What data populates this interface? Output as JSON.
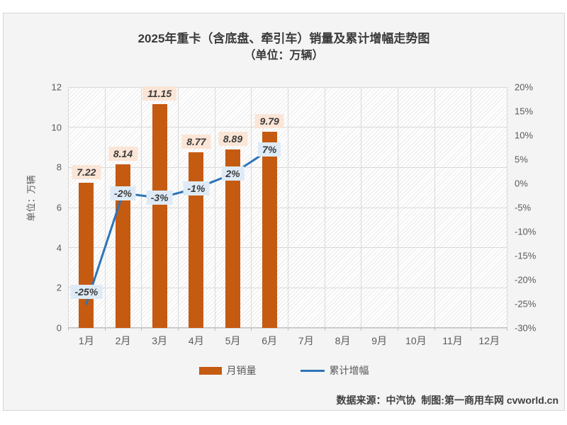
{
  "chart": {
    "title_line1": "2025年重卡（含底盘、牵引车）销量及累计增幅走势图",
    "title_line2": "（单位：万辆）",
    "left_axis_title": "单位：万辆"
  },
  "legend": {
    "bar_label": "月销量",
    "line_label": "累计增幅"
  },
  "footer": {
    "text": "数据来源：中汽协  制图:第一商用车网 cvworld.cn"
  },
  "colors": {
    "bar": "#c55a11",
    "line": "#2e75b6",
    "bar_label_bg": "#fbe5d6",
    "line_label_bg": "#deebf7",
    "gridline": "#d9d9d9",
    "axis_text": "#595959"
  },
  "chart_data": {
    "type": "bar+line",
    "title": "2025年重卡（含底盘、牵引车）销量及累计增幅走势图（单位：万辆）",
    "categories": [
      "1月",
      "2月",
      "3月",
      "4月",
      "5月",
      "6月",
      "7月",
      "8月",
      "9月",
      "10月",
      "11月",
      "12月"
    ],
    "series": [
      {
        "name": "月销量",
        "type": "bar",
        "axis": "left",
        "values": [
          7.22,
          8.14,
          11.15,
          8.77,
          8.89,
          9.79,
          null,
          null,
          null,
          null,
          null,
          null
        ],
        "labels": [
          "7.22",
          "8.14",
          "11.15",
          "8.77",
          "8.89",
          "9.79"
        ]
      },
      {
        "name": "累计增幅",
        "type": "line",
        "axis": "right",
        "values": [
          -25,
          -2,
          -3,
          -1,
          2,
          7
        ],
        "labels": [
          "-25%",
          "-2%",
          "-3%",
          "-1%",
          "2%",
          "7%"
        ]
      }
    ],
    "left_axis": {
      "min": 0,
      "max": 12,
      "step": 2,
      "ticks_top_to_bottom": [
        "12",
        "10",
        "8",
        "6",
        "4",
        "2",
        "0"
      ],
      "label": "单位：万辆"
    },
    "right_axis": {
      "min": -30,
      "max": 20,
      "step": 5,
      "ticks_top_to_bottom": [
        "20%",
        "15%",
        "10%",
        "5%",
        "0%",
        "-5%",
        "-10%",
        "-15%",
        "-20%",
        "-25%",
        "-30%"
      ]
    },
    "grid": true,
    "legend_position": "bottom",
    "plot_background": "diagonal-hatch"
  }
}
